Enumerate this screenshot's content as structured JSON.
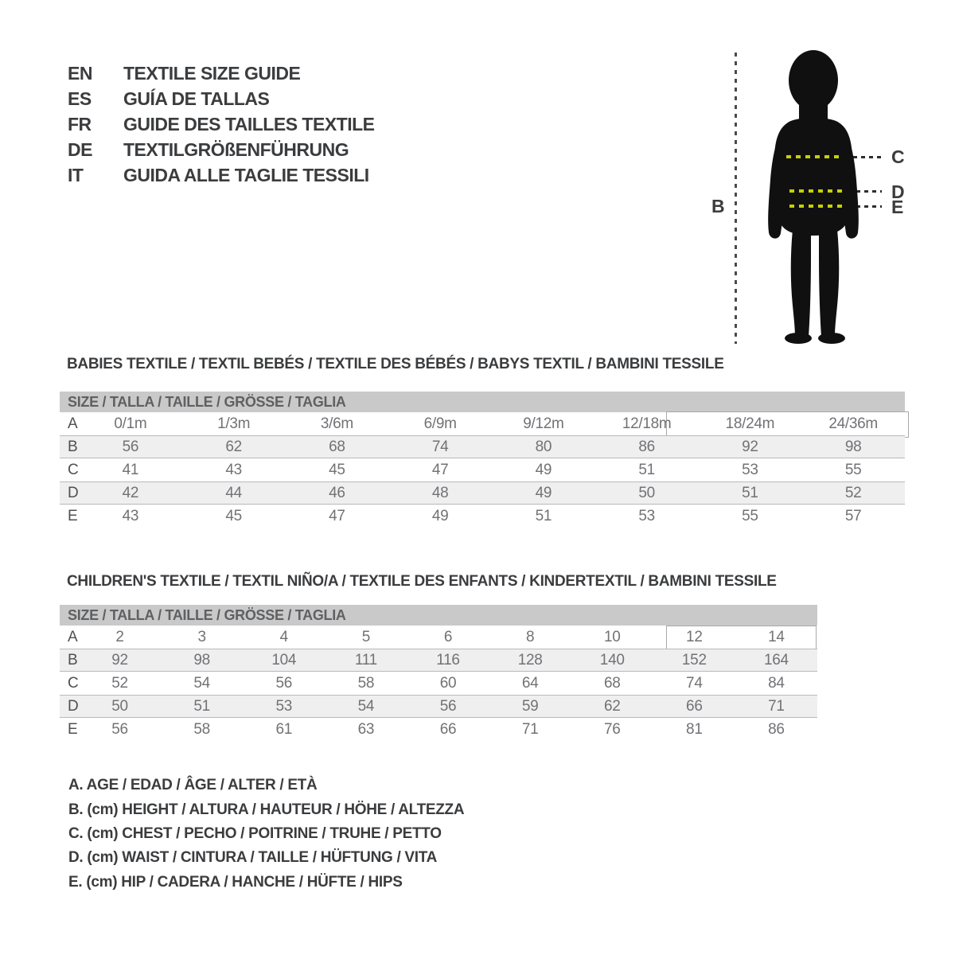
{
  "languages": [
    {
      "code": "EN",
      "title": "TEXTILE SIZE GUIDE"
    },
    {
      "code": "ES",
      "title": "GUÍA DE TALLAS"
    },
    {
      "code": "FR",
      "title": "GUIDE DES TAILLES TEXTILE"
    },
    {
      "code": "DE",
      "title": "TEXTILGRÖßENFÜHRUNG"
    },
    {
      "code": "IT",
      "title": "GUIDA ALLE TAGLIE TESSILI"
    }
  ],
  "figure": {
    "height_label": "B",
    "chest_label": "C",
    "waist_label": "D",
    "hip_label": "E",
    "measure_dash_color": "#c4d104",
    "silhouette_color": "#101010"
  },
  "babies": {
    "heading": "BABIES TEXTILE / TEXTIL BEBÉS / TEXTILE DES BÉBÉS / BABYS TEXTIL / BAMBINI TESSILE",
    "size_header": "SIZE / TALLA / TAILLE / GRÖSSE / TAGLIA",
    "rows": [
      {
        "label": "A",
        "values": [
          "0/1m",
          "1/3m",
          "3/6m",
          "6/9m",
          "9/12m",
          "12/18m",
          "18/24m",
          "24/36m"
        ]
      },
      {
        "label": "B",
        "values": [
          "56",
          "62",
          "68",
          "74",
          "80",
          "86",
          "92",
          "98"
        ]
      },
      {
        "label": "C",
        "values": [
          "41",
          "43",
          "45",
          "47",
          "49",
          "51",
          "53",
          "55"
        ]
      },
      {
        "label": "D",
        "values": [
          "42",
          "44",
          "46",
          "48",
          "49",
          "50",
          "51",
          "52"
        ]
      },
      {
        "label": "E",
        "values": [
          "43",
          "45",
          "47",
          "49",
          "51",
          "53",
          "55",
          "57"
        ]
      }
    ]
  },
  "children": {
    "heading": "CHILDREN'S TEXTILE / TEXTIL NIÑO/A / TEXTILE DES ENFANTS / KINDERTEXTIL / BAMBINI TESSILE",
    "size_header": "SIZE / TALLA / TAILLE / GRÖSSE / TAGLIA",
    "rows": [
      {
        "label": "A",
        "values": [
          "2",
          "3",
          "4",
          "5",
          "6",
          "8",
          "10",
          "12",
          "14"
        ]
      },
      {
        "label": "B",
        "values": [
          "92",
          "98",
          "104",
          "111",
          "116",
          "128",
          "140",
          "152",
          "164"
        ]
      },
      {
        "label": "C",
        "values": [
          "52",
          "54",
          "56",
          "58",
          "60",
          "64",
          "68",
          "74",
          "84"
        ]
      },
      {
        "label": "D",
        "values": [
          "50",
          "51",
          "53",
          "54",
          "56",
          "59",
          "62",
          "66",
          "71"
        ]
      },
      {
        "label": "E",
        "values": [
          "56",
          "58",
          "61",
          "63",
          "66",
          "71",
          "76",
          "81",
          "86"
        ]
      }
    ]
  },
  "legend": [
    "A. AGE / EDAD / ÂGE / ALTER / ETÀ",
    "B. (cm) HEIGHT / ALTURA / HAUTEUR / HÖHE / ALTEZZA",
    "C. (cm) CHEST / PECHO / POITRINE / TRUHE / PETTO",
    "D. (cm) WAIST / CINTURA / TAILLE / HÜFTUNG / VITA",
    "E. (cm) HIP / CADERA / HANCHE / HÜFTE / HIPS"
  ]
}
